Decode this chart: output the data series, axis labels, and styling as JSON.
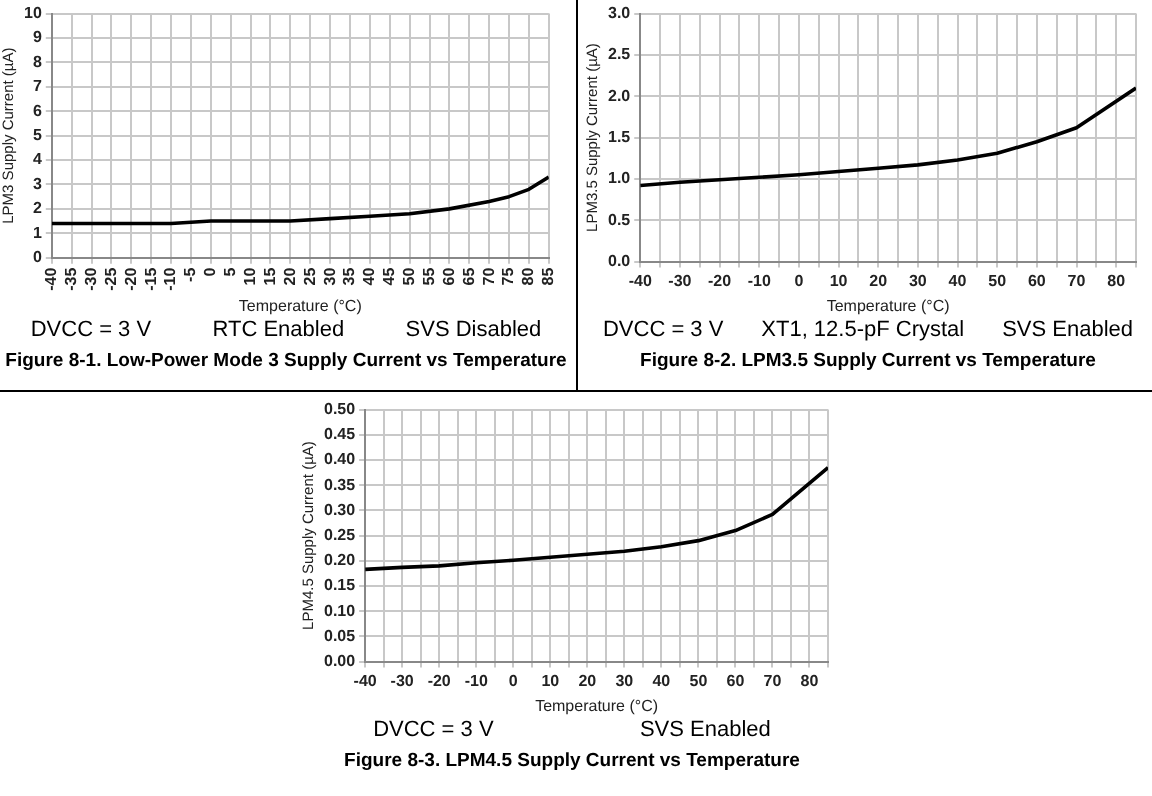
{
  "chart_data": [
    {
      "type": "line",
      "title": "Figure 8-1. Low-Power Mode 3 Supply Current vs Temperature",
      "xlabel": "Temperature (°C)",
      "ylabel": "LPM3 Supply Current (µA)",
      "annotations": [
        "DVCC = 3 V",
        "RTC Enabled",
        "SVS Disabled"
      ],
      "x": [
        -40,
        -30,
        -20,
        -10,
        0,
        10,
        20,
        30,
        40,
        50,
        60,
        70,
        75,
        80,
        85
      ],
      "series": [
        {
          "color": "#000000",
          "values": [
            1.4,
            1.4,
            1.4,
            1.4,
            1.5,
            1.5,
            1.5,
            1.6,
            1.7,
            1.8,
            2.0,
            2.3,
            2.5,
            2.8,
            3.3
          ]
        }
      ],
      "xlim": [
        -40,
        85
      ],
      "xticks": [
        -40,
        -35,
        -30,
        -25,
        -20,
        -15,
        -10,
        -5,
        0,
        5,
        10,
        15,
        20,
        25,
        30,
        35,
        40,
        45,
        50,
        55,
        60,
        65,
        70,
        75,
        80,
        85
      ],
      "ylim": [
        0,
        10
      ],
      "yticks": [
        0,
        1,
        2,
        3,
        4,
        5,
        6,
        7,
        8,
        9,
        10
      ],
      "grid": true,
      "marker": "none"
    },
    {
      "type": "line",
      "title": "Figure 8-2. LPM3.5 Supply Current vs Temperature",
      "xlabel": "Temperature (°C)",
      "ylabel": "LPM3.5 Supply Current (µA)",
      "annotations": [
        "DVCC = 3 V",
        "XT1, 12.5-pF Crystal",
        "SVS Enabled"
      ],
      "x": [
        -40,
        -30,
        -20,
        -10,
        0,
        10,
        20,
        30,
        40,
        50,
        60,
        70,
        85
      ],
      "series": [
        {
          "color": "#000000",
          "values": [
            0.92,
            0.96,
            0.99,
            1.02,
            1.05,
            1.09,
            1.13,
            1.17,
            1.23,
            1.31,
            1.45,
            1.62,
            2.1
          ]
        }
      ],
      "xlim": [
        -40,
        85
      ],
      "xticks": [
        -40,
        {
          "value": -35,
          "label": null
        },
        -30,
        {
          "value": -25,
          "label": null
        },
        -20,
        {
          "value": -15,
          "label": null
        },
        -10,
        {
          "value": -5,
          "label": null
        },
        0,
        {
          "value": 5,
          "label": null
        },
        10,
        {
          "value": 15,
          "label": null
        },
        20,
        {
          "value": 25,
          "label": null
        },
        30,
        {
          "value": 35,
          "label": null
        },
        40,
        {
          "value": 45,
          "label": null
        },
        50,
        {
          "value": 55,
          "label": null
        },
        60,
        {
          "value": 65,
          "label": null
        },
        70,
        {
          "value": 75,
          "label": null
        },
        80,
        {
          "value": 85,
          "label": null
        }
      ],
      "ylim": [
        0,
        3
      ],
      "yticks": [
        {
          "value": 0,
          "label": "0.0"
        },
        0.5,
        {
          "value": 1,
          "label": "1.0"
        },
        1.5,
        {
          "value": 2,
          "label": "2.0"
        },
        2.5,
        {
          "value": 3,
          "label": "3.0"
        }
      ],
      "grid": true,
      "marker": "none"
    },
    {
      "type": "line",
      "title": "Figure 8-3. LPM4.5 Supply Current vs Temperature",
      "xlabel": "Temperature (°C)",
      "ylabel": "LPM4.5 Supply Current (µA)",
      "annotations": [
        "DVCC = 3 V",
        "SVS Enabled"
      ],
      "x": [
        -40,
        -30,
        -20,
        -10,
        0,
        10,
        20,
        30,
        40,
        50,
        60,
        70,
        85
      ],
      "series": [
        {
          "color": "#000000",
          "values": [
            0.183,
            0.187,
            0.19,
            0.196,
            0.201,
            0.207,
            0.213,
            0.219,
            0.228,
            0.24,
            0.26,
            0.292,
            0.385
          ]
        }
      ],
      "xlim": [
        -40,
        85
      ],
      "xticks": [
        -40,
        {
          "value": -35,
          "label": null
        },
        -30,
        {
          "value": -25,
          "label": null
        },
        -20,
        {
          "value": -15,
          "label": null
        },
        -10,
        {
          "value": -5,
          "label": null
        },
        0,
        {
          "value": 5,
          "label": null
        },
        10,
        {
          "value": 15,
          "label": null
        },
        20,
        {
          "value": 25,
          "label": null
        },
        30,
        {
          "value": 35,
          "label": null
        },
        40,
        {
          "value": 45,
          "label": null
        },
        50,
        {
          "value": 55,
          "label": null
        },
        60,
        {
          "value": 65,
          "label": null
        },
        70,
        {
          "value": 75,
          "label": null
        },
        80,
        {
          "value": 85,
          "label": null
        }
      ],
      "ylim": [
        0,
        0.5
      ],
      "yticks": [
        {
          "value": 0,
          "label": "0.00"
        },
        0.05,
        {
          "value": 0.1,
          "label": "0.10"
        },
        0.15,
        {
          "value": 0.2,
          "label": "0.20"
        },
        0.25,
        {
          "value": 0.3,
          "label": "0.30"
        },
        0.35,
        {
          "value": 0.4,
          "label": "0.40"
        },
        0.45,
        {
          "value": 0.5,
          "label": "0.50"
        }
      ],
      "grid": true,
      "marker": "none"
    }
  ]
}
